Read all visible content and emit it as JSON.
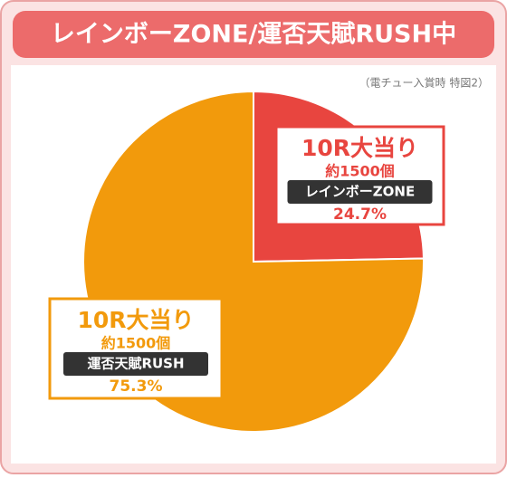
{
  "chart_data": {
    "type": "pie",
    "title": "レインボーZONE/運否天賦RUSH中",
    "subtitle": "（電チュー入賞時 特図2）",
    "categories": [
      "レインボーZONE",
      "運否天賦RUSH"
    ],
    "labels": [
      "10R大当り",
      "10R大当り"
    ],
    "details": [
      "約1500個",
      "約1500個"
    ],
    "values": [
      24.7,
      75.3
    ],
    "value_labels": [
      "24.7%",
      "75.3%"
    ],
    "colors": [
      "#e8453f",
      "#f29a0c"
    ]
  }
}
